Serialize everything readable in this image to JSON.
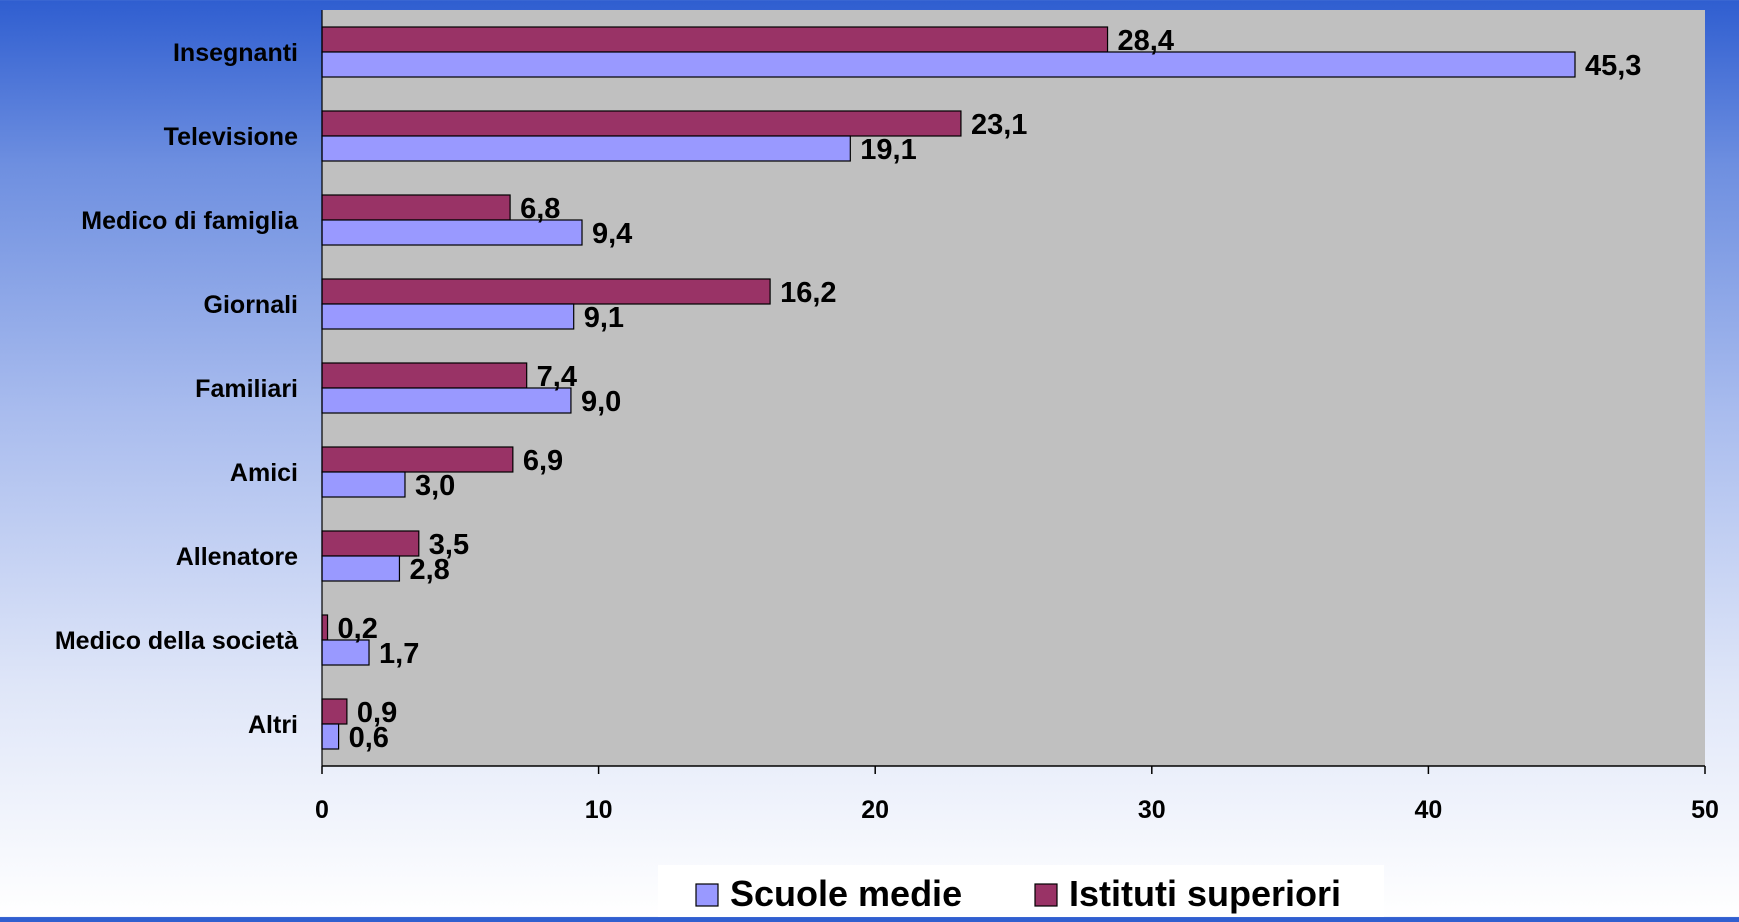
{
  "chart_data": {
    "type": "bar",
    "orientation": "horizontal",
    "categories": [
      "Insegnanti",
      "Televisione",
      "Medico di famiglia",
      "Giornali",
      "Familiari",
      "Amici",
      "Allenatore",
      "Medico della società",
      "Altri"
    ],
    "series": [
      {
        "name": "Scuole medie",
        "color": "#9999ff",
        "values": [
          45.3,
          19.1,
          9.4,
          9.1,
          9.0,
          3.0,
          2.8,
          1.7,
          0.6
        ],
        "labels": [
          "45,3",
          "19,1",
          "9,4",
          "9,1",
          "9,0",
          "3,0",
          "2,8",
          "1,7",
          "0,6"
        ]
      },
      {
        "name": "Istituti superiori",
        "color": "#993366",
        "values": [
          28.4,
          23.1,
          6.8,
          16.2,
          7.4,
          6.9,
          3.5,
          0.2,
          0.9
        ],
        "labels": [
          "28,4",
          "23,1",
          "6,8",
          "16,2",
          "7,4",
          "6,9",
          "3,5",
          "0,2",
          "0,9"
        ]
      }
    ],
    "xlim": [
      0,
      50
    ],
    "xticks": [
      0,
      10,
      20,
      30,
      40,
      50
    ],
    "xtick_labels": [
      "0",
      "10",
      "20",
      "30",
      "40",
      "50"
    ],
    "grid": false,
    "legend_position": "bottom",
    "plot_background": "#c0c0c0"
  }
}
